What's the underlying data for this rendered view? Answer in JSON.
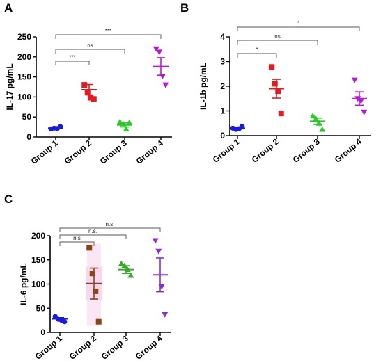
{
  "panels": [
    {
      "label": "A"
    },
    {
      "label": "B"
    },
    {
      "label": "C"
    }
  ],
  "chart_data": [
    {
      "type": "scatter",
      "panel": "A",
      "ylabel": "IL-17 pg/mL",
      "xlabel": "",
      "categories": [
        "Group 1",
        "Group 2",
        "Group 3",
        "Group 4"
      ],
      "ylim": [
        0,
        250
      ],
      "yticks": [
        0,
        50,
        100,
        150,
        200,
        250
      ],
      "grid": false,
      "series": [
        {
          "category": "Group 1",
          "marker": "circle",
          "color": "#1a1adb",
          "points": [
            20,
            22,
            21,
            26
          ],
          "mean": 22,
          "sem": 2
        },
        {
          "category": "Group 2",
          "marker": "square",
          "color": "#e8191f",
          "points": [
            130,
            112,
            98,
            95
          ],
          "mean": 118,
          "sem": 13
        },
        {
          "category": "Group 3",
          "marker": "triangle",
          "color": "#2ac92a",
          "points": [
            38,
            33,
            20,
            36
          ],
          "mean": 30,
          "sem": 5
        },
        {
          "category": "Group 4",
          "marker": "tri-down",
          "color": "#b21ad8",
          "points": [
            220,
            212,
            152,
            130
          ],
          "mean": 176,
          "sem": 22
        }
      ],
      "comparisons": [
        {
          "from": "Group 1",
          "to": "Group 2",
          "label": "***"
        },
        {
          "from": "Group 1",
          "to": "Group 3",
          "label": "ns"
        },
        {
          "from": "Group 1",
          "to": "Group 4",
          "label": "***"
        }
      ]
    },
    {
      "type": "scatter",
      "panel": "B",
      "ylabel": "IL-1b pg/mL",
      "xlabel": "",
      "categories": [
        "Group 1",
        "Group 2",
        "Group 3",
        "Group 4"
      ],
      "ylim": [
        0,
        4
      ],
      "yticks": [
        0,
        1,
        2,
        3,
        4
      ],
      "grid": false,
      "series": [
        {
          "category": "Group 1",
          "marker": "circle",
          "color": "#1a1adb",
          "points": [
            0.3,
            0.25,
            0.28,
            0.38
          ],
          "mean": 0.3,
          "sem": 0.04
        },
        {
          "category": "Group 2",
          "marker": "square",
          "color": "#e8191f",
          "points": [
            2.78,
            2.1,
            1.8,
            0.9
          ],
          "mean": 1.9,
          "sem": 0.38
        },
        {
          "category": "Group 3",
          "marker": "triangle",
          "color": "#2ac92a",
          "points": [
            0.8,
            0.68,
            0.5,
            0.25
          ],
          "mean": 0.58,
          "sem": 0.13
        },
        {
          "category": "Group 4",
          "marker": "tri-down",
          "color": "#b21ad8",
          "points": [
            2.25,
            1.5,
            1.4,
            0.95
          ],
          "mean": 1.5,
          "sem": 0.27
        }
      ],
      "comparisons": [
        {
          "from": "Group 1",
          "to": "Group 2",
          "label": "*"
        },
        {
          "from": "Group 1",
          "to": "Group 3",
          "label": "ns"
        },
        {
          "from": "Group 1",
          "to": "Group 4",
          "label": "*"
        }
      ]
    },
    {
      "type": "scatter",
      "panel": "C",
      "ylabel": "IL-6 pg/mL",
      "xlabel": "",
      "categories": [
        "Group 1",
        "Group 2",
        "Group 3",
        "Group 4"
      ],
      "ylim": [
        0,
        200
      ],
      "yticks": [
        0,
        50,
        100,
        150,
        200
      ],
      "grid": false,
      "series": [
        {
          "category": "Group 1",
          "marker": "circle",
          "color": "#1a1adb",
          "points": [
            33,
            27,
            25,
            22
          ],
          "mean": 28,
          "sem": 2.5
        },
        {
          "category": "Group 2",
          "marker": "square",
          "color": "#8b4513",
          "points": [
            175,
            122,
            85,
            22
          ],
          "mean": 101,
          "sem": 32,
          "shade": "#f7d6ee"
        },
        {
          "category": "Group 3",
          "marker": "triangle",
          "color": "#3aa82a",
          "points": [
            142,
            138,
            130,
            118
          ],
          "mean": 130,
          "sem": 8
        },
        {
          "category": "Group 4",
          "marker": "tri-down",
          "color": "#8a2be2",
          "points": [
            190,
            168,
            95,
            37
          ],
          "mean": 119,
          "sem": 35
        }
      ],
      "comparisons": [
        {
          "from": "Group 1",
          "to": "Group 2",
          "label": "n.s"
        },
        {
          "from": "Group 1",
          "to": "Group 3",
          "label": "n.s."
        },
        {
          "from": "Group 1",
          "to": "Group 4",
          "label": "n.s."
        }
      ]
    }
  ]
}
